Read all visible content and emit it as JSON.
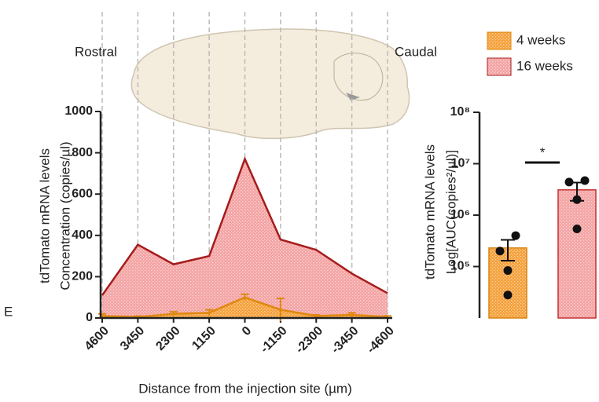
{
  "chart_data": [
    {
      "type": "area",
      "panel_label": "E",
      "annotations": [
        "Rostral",
        "Caudal"
      ],
      "ylabel": [
        "tdTomato mRNA levels",
        "Concentration (copies/µl)"
      ],
      "xlabel": "Distance from the injection site (µm)",
      "x": [
        4600,
        3450,
        2300,
        1150,
        0,
        -1150,
        -2300,
        -3450,
        -4600
      ],
      "xlim": [
        4600,
        -4600
      ],
      "xticks": [
        4600,
        3450,
        2300,
        1150,
        0,
        -1150,
        -2300,
        -3450,
        -4600
      ],
      "ylim": [
        0,
        1000
      ],
      "yticks": [
        0,
        200,
        400,
        600,
        800,
        1000
      ],
      "grid": true,
      "series": [
        {
          "name": "16 weeks",
          "color": "#f4a3a3",
          "line_color": "#a51c1c",
          "values": [
            110,
            355,
            260,
            300,
            770,
            380,
            330,
            215,
            120
          ]
        },
        {
          "name": "4 weeks",
          "color": "#f5a03a",
          "line_color": "#e0870f",
          "values": [
            10,
            5,
            20,
            25,
            100,
            40,
            10,
            15,
            5
          ],
          "errors": [
            10,
            5,
            10,
            15,
            15,
            55,
            5,
            10,
            5
          ]
        }
      ]
    },
    {
      "type": "bar",
      "log_scale": true,
      "ylabel": [
        "tdTomato mRNA levels",
        "Log[AUC(copies²/µl)]"
      ],
      "ylim": [
        10000,
        100000000
      ],
      "yticks": [
        {
          "value": 100000,
          "label": "10⁵"
        },
        {
          "value": 1000000,
          "label": "10⁶"
        },
        {
          "value": 10000000,
          "label": "10⁷"
        },
        {
          "value": 100000000,
          "label": "10⁸"
        }
      ],
      "significance": "*",
      "series": [
        {
          "color": "#f5a03a",
          "values": [
            230000
          ],
          "errors": [
            100000
          ],
          "points": [
            400000,
            200000,
            84000,
            28000
          ]
        },
        {
          "color": "#f4a3a3",
          "values": [
            3100000
          ],
          "errors": [
            1200000
          ],
          "points": [
            4700000,
            4400000,
            2000000,
            540000
          ]
        }
      ]
    }
  ]
}
